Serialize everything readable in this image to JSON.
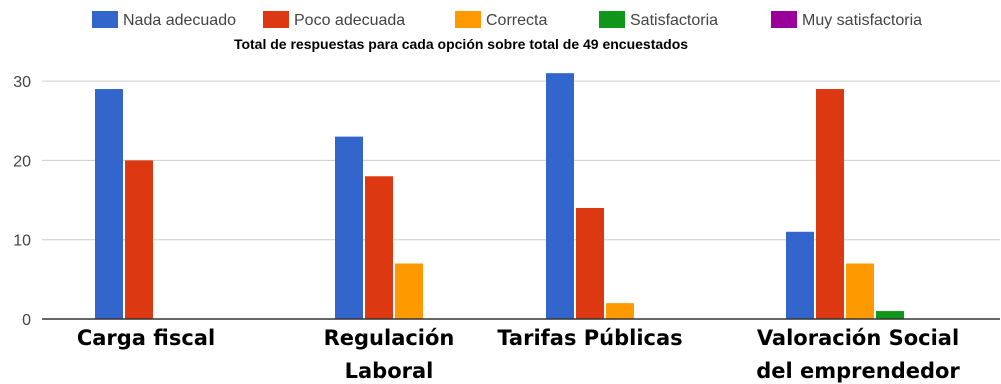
{
  "chart_data": {
    "type": "bar",
    "title": "Total de respuestas para cada opción sobre total de 49 encuestados",
    "categories": [
      [
        "Carga fiscal"
      ],
      [
        "Regulación",
        "Laboral"
      ],
      [
        "Tarifas Públicas"
      ],
      [
        "Valoración Social",
        "del emprendedor"
      ]
    ],
    "series": [
      {
        "name": "Nada adecuado",
        "color": "#3366cc",
        "values": [
          29,
          23,
          31,
          11
        ]
      },
      {
        "name": "Poco adecuada",
        "color": "#dc3912",
        "values": [
          20,
          18,
          14,
          29
        ]
      },
      {
        "name": "Correcta",
        "color": "#ff9900",
        "values": [
          0,
          7,
          2,
          7
        ]
      },
      {
        "name": "Satisfactoria",
        "color": "#109618",
        "values": [
          0,
          0,
          0,
          1
        ]
      },
      {
        "name": "Muy satisfactoria",
        "color": "#990099",
        "values": [
          0,
          0,
          0,
          0
        ]
      }
    ],
    "y_ticks": [
      "0",
      "10",
      "20",
      "30"
    ],
    "ylim": [
      0,
      31
    ],
    "grid": true,
    "legend_position": "top"
  }
}
